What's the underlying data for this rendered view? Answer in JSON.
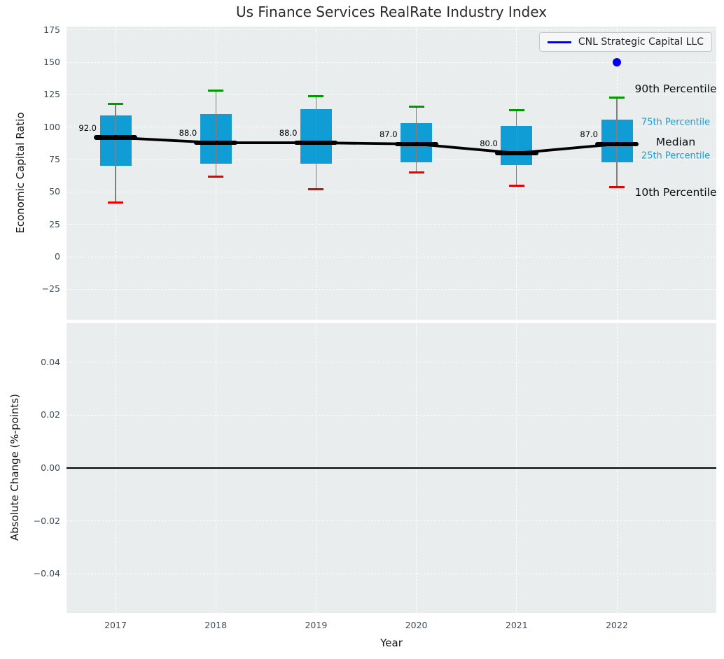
{
  "title": "Us Finance Services RealRate Industry Index",
  "legend": {
    "label": "CNL Strategic Capital LLC"
  },
  "colors": {
    "box_fill": "#109dd6",
    "median": "#000000",
    "whisker": "#7f7f7f",
    "cap_high": "#009a00",
    "cap_low": "#e60000",
    "company": "#0000ee",
    "plot_bg": "#e9edee",
    "grid": "#ffffff",
    "tick_label": "#3e4c5a",
    "accent_text": "#1b9fd8"
  },
  "chart_data": {
    "type": "boxplot",
    "title": "Us Finance Services RealRate Industry Index",
    "categories": [
      "2017",
      "2018",
      "2019",
      "2020",
      "2021",
      "2022"
    ],
    "top_panel": {
      "ylabel": "Economic Capital Ratio",
      "ylim": [
        -48.5,
        177.6
      ],
      "yticks": [
        {
          "v": 175,
          "label": "175"
        },
        {
          "v": 150,
          "label": "150"
        },
        {
          "v": 125,
          "label": "125"
        },
        {
          "v": 100,
          "label": "100"
        },
        {
          "v": 75,
          "label": "75"
        },
        {
          "v": 50,
          "label": "50"
        },
        {
          "v": 25,
          "label": "25"
        },
        {
          "v": 0,
          "label": "0"
        },
        {
          "v": -25,
          "label": "−25"
        }
      ],
      "boxes": [
        {
          "category": "2017",
          "whisker_low": 42,
          "q1": 70,
          "median": 92,
          "q3": 109,
          "whisker_high": 118,
          "median_label": "92.0"
        },
        {
          "category": "2018",
          "whisker_low": 62,
          "q1": 72,
          "median": 88,
          "q3": 110,
          "whisker_high": 128,
          "median_label": "88.0"
        },
        {
          "category": "2019",
          "whisker_low": 52,
          "q1": 72,
          "median": 88,
          "q3": 114,
          "whisker_high": 124,
          "median_label": "88.0"
        },
        {
          "category": "2020",
          "whisker_low": 65,
          "q1": 73,
          "median": 87,
          "q3": 103,
          "whisker_high": 116,
          "median_label": "87.0"
        },
        {
          "category": "2021",
          "whisker_low": 55,
          "q1": 71,
          "median": 80,
          "q3": 101,
          "whisker_high": 113,
          "median_label": "80.0"
        },
        {
          "category": "2022",
          "whisker_low": 54,
          "q1": 73,
          "median": 87,
          "q3": 106,
          "whisker_high": 123,
          "median_label": "87.0"
        }
      ],
      "median_line_series": {
        "name": "Industry Median",
        "values": [
          92,
          88,
          88,
          87,
          80,
          87
        ]
      },
      "company_series": {
        "name": "CNL Strategic Capital LLC",
        "points": [
          {
            "category": "2022",
            "value": 150
          }
        ]
      },
      "annotations": [
        {
          "text": "90th Percentile",
          "style": "major",
          "value": 123,
          "dy": -12
        },
        {
          "text": "75th Percentile",
          "style": "minor",
          "value": 106,
          "dy": 4
        },
        {
          "text": "Median",
          "style": "major",
          "value": 87,
          "dy": -3
        },
        {
          "text": "25th Percentile",
          "style": "minor",
          "value": 73,
          "dy": -9
        },
        {
          "text": "10th Percentile",
          "style": "major",
          "value": 54,
          "dy": 8
        }
      ]
    },
    "bottom_panel": {
      "ylabel": "Absolute Change (%-points)",
      "xlabel": "Year",
      "ylim": [
        -0.0547,
        0.0547
      ],
      "yticks": [
        {
          "v": 0.04,
          "label": "0.04"
        },
        {
          "v": 0.02,
          "label": "0.02"
        },
        {
          "v": 0,
          "label": "0.00"
        },
        {
          "v": -0.02,
          "label": "−0.02"
        },
        {
          "v": -0.04,
          "label": "−0.04"
        }
      ],
      "zero_line": 0
    }
  }
}
